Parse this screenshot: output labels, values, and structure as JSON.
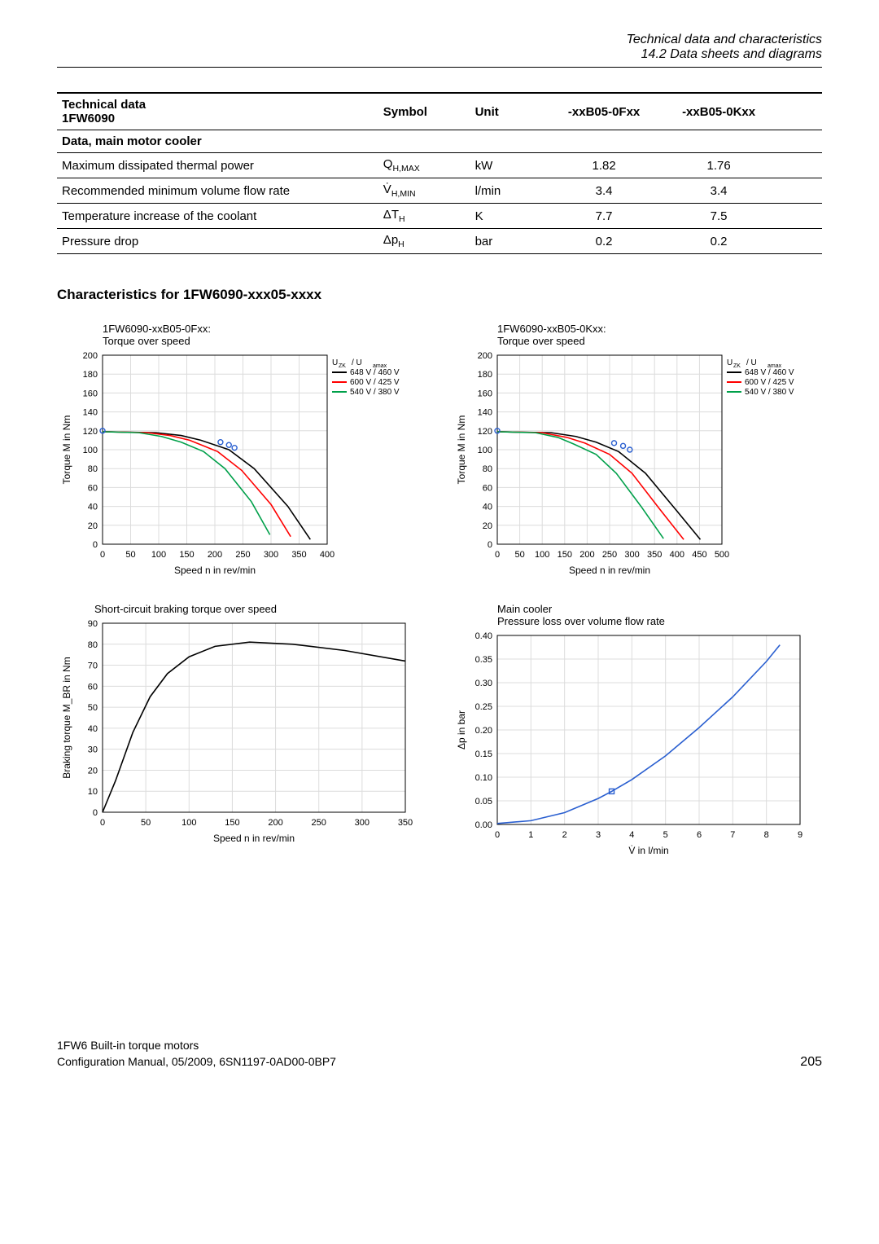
{
  "header": {
    "line1": "Technical data and characteristics",
    "line2": "14.2 Data sheets and diagrams"
  },
  "table": {
    "head": {
      "c1a": "Technical data",
      "c1b": "1FW6090",
      "c2": "Symbol",
      "c3": "Unit",
      "c4": "-xxB05-0Fxx",
      "c5": "-xxB05-0Kxx"
    },
    "subhead": "Data, main motor cooler",
    "rows": [
      {
        "label": "Maximum dissipated thermal power",
        "symbol": "Q",
        "sub": "H,MAX",
        "unit": "kW",
        "v1": "1.82",
        "v2": "1.76"
      },
      {
        "label": "Recommended minimum volume flow rate",
        "symbol": "V̇",
        "sub": "H,MIN",
        "unit": "l/min",
        "v1": "3.4",
        "v2": "3.4"
      },
      {
        "label": "Temperature increase of the coolant",
        "symbol": "ΔT",
        "sub": "H",
        "unit": "K",
        "v1": "7.7",
        "v2": "7.5"
      },
      {
        "label": "Pressure drop",
        "symbol": "Δp",
        "sub": "H",
        "unit": "bar",
        "v1": "0.2",
        "v2": "0.2"
      }
    ]
  },
  "section_title": "Characteristics for 1FW6090-xxx05-xxxx",
  "chart1": {
    "title1": "1FW6090-xxB05-0Fxx:",
    "title2": "Torque over speed",
    "xlabel": "Speed n in rev/min",
    "ylabel": "Torque M in Nm",
    "xlim": [
      0,
      400
    ],
    "ylim": [
      0,
      200
    ],
    "xticks": [
      0,
      50,
      100,
      150,
      200,
      250,
      300,
      350,
      400
    ],
    "yticks": [
      0,
      20,
      40,
      60,
      80,
      100,
      120,
      140,
      160,
      180,
      200
    ],
    "legend_title": "U_ZK / U_amax",
    "legend": [
      {
        "color": "#000000",
        "label": "648 V / 460 V"
      },
      {
        "color": "#ff0000",
        "label": "600 V / 425 V"
      },
      {
        "color": "#00a04a",
        "label": "540 V / 380 V"
      }
    ],
    "dots": {
      "color": "#2a5fd0",
      "points": [
        [
          0,
          120
        ],
        [
          210,
          108
        ],
        [
          225,
          105
        ],
        [
          235,
          102
        ]
      ]
    },
    "lines": [
      {
        "color": "#000000",
        "points": [
          [
            0,
            119
          ],
          [
            95,
            118
          ],
          [
            140,
            115
          ],
          [
            175,
            110
          ],
          [
            225,
            100
          ],
          [
            270,
            80
          ],
          [
            330,
            40
          ],
          [
            370,
            5
          ]
        ]
      },
      {
        "color": "#ff0000",
        "points": [
          [
            0,
            119
          ],
          [
            80,
            118
          ],
          [
            120,
            115
          ],
          [
            155,
            110
          ],
          [
            205,
            98
          ],
          [
            248,
            78
          ],
          [
            300,
            42
          ],
          [
            335,
            8
          ]
        ]
      },
      {
        "color": "#00a04a",
        "points": [
          [
            0,
            119
          ],
          [
            65,
            118
          ],
          [
            105,
            114
          ],
          [
            140,
            108
          ],
          [
            180,
            98
          ],
          [
            218,
            80
          ],
          [
            265,
            45
          ],
          [
            298,
            10
          ]
        ]
      }
    ],
    "grid": "#dcdcdc",
    "bg": "#ffffff",
    "axis": "#000000"
  },
  "chart2": {
    "title1": "1FW6090-xxB05-0Kxx:",
    "title2": "Torque over speed",
    "xlabel": "Speed n in rev/min",
    "ylabel": "Torque M in Nm",
    "xlim": [
      0,
      500
    ],
    "ylim": [
      0,
      200
    ],
    "xticks": [
      0,
      50,
      100,
      150,
      200,
      250,
      300,
      350,
      400,
      450,
      500
    ],
    "yticks": [
      0,
      20,
      40,
      60,
      80,
      100,
      120,
      140,
      160,
      180,
      200
    ],
    "legend_title": "U_ZK / U_amax",
    "legend": [
      {
        "color": "#000000",
        "label": "648 V / 460 V"
      },
      {
        "color": "#ff0000",
        "label": "600 V / 425 V"
      },
      {
        "color": "#00a04a",
        "label": "540 V / 380 V"
      }
    ],
    "dots": {
      "color": "#2a5fd0",
      "points": [
        [
          0,
          120
        ],
        [
          260,
          107
        ],
        [
          280,
          104
        ],
        [
          295,
          100
        ]
      ]
    },
    "lines": [
      {
        "color": "#000000",
        "points": [
          [
            0,
            119
          ],
          [
            120,
            118
          ],
          [
            175,
            114
          ],
          [
            220,
            108
          ],
          [
            270,
            98
          ],
          [
            330,
            75
          ],
          [
            400,
            35
          ],
          [
            452,
            5
          ]
        ]
      },
      {
        "color": "#ff0000",
        "points": [
          [
            0,
            119
          ],
          [
            100,
            118
          ],
          [
            155,
            113
          ],
          [
            195,
            107
          ],
          [
            250,
            95
          ],
          [
            300,
            75
          ],
          [
            360,
            38
          ],
          [
            415,
            5
          ]
        ]
      },
      {
        "color": "#00a04a",
        "points": [
          [
            0,
            119
          ],
          [
            85,
            118
          ],
          [
            135,
            113
          ],
          [
            170,
            106
          ],
          [
            220,
            95
          ],
          [
            265,
            75
          ],
          [
            320,
            40
          ],
          [
            370,
            6
          ]
        ]
      }
    ],
    "grid": "#dcdcdc",
    "bg": "#ffffff",
    "axis": "#000000"
  },
  "chart3": {
    "title": "Short-circuit braking torque over speed",
    "xlabel": "Speed n in rev/min",
    "ylabel": "Braking torque M_BR in Nm",
    "xlim": [
      0,
      350
    ],
    "ylim": [
      0,
      90
    ],
    "xticks": [
      0,
      50,
      100,
      150,
      200,
      250,
      300,
      350
    ],
    "yticks": [
      0,
      10,
      20,
      30,
      40,
      50,
      60,
      70,
      80,
      90
    ],
    "line": {
      "color": "#000000",
      "points": [
        [
          0,
          0
        ],
        [
          15,
          15
        ],
        [
          35,
          38
        ],
        [
          55,
          55
        ],
        [
          75,
          66
        ],
        [
          100,
          74
        ],
        [
          130,
          79
        ],
        [
          170,
          81
        ],
        [
          220,
          80
        ],
        [
          280,
          77
        ],
        [
          350,
          72
        ]
      ]
    },
    "grid": "#dcdcdc",
    "bg": "#ffffff",
    "axis": "#000000"
  },
  "chart4": {
    "title1": "Main cooler",
    "title2": "Pressure loss over volume flow rate",
    "xlabel": "V̇ in l/min",
    "ylabel": "Δp in bar",
    "xlim": [
      0,
      9
    ],
    "ylim": [
      0,
      0.4
    ],
    "xticks": [
      0,
      1,
      2,
      3,
      4,
      5,
      6,
      7,
      8,
      9
    ],
    "yticks": [
      0.0,
      0.05,
      0.1,
      0.15,
      0.2,
      0.25,
      0.3,
      0.35,
      0.4
    ],
    "line": {
      "color": "#2a5fd0",
      "points": [
        [
          0,
          0.002
        ],
        [
          1,
          0.008
        ],
        [
          2,
          0.025
        ],
        [
          3,
          0.055
        ],
        [
          3.4,
          0.07
        ],
        [
          4,
          0.095
        ],
        [
          5,
          0.145
        ],
        [
          6,
          0.205
        ],
        [
          7,
          0.27
        ],
        [
          8,
          0.345
        ],
        [
          8.4,
          0.38
        ]
      ]
    },
    "marker": {
      "color": "#2a5fd0",
      "point": [
        3.4,
        0.07
      ]
    },
    "grid": "#dcdcdc",
    "bg": "#ffffff",
    "axis": "#000000"
  },
  "footer": {
    "l1": "1FW6 Built-in torque motors",
    "l2": "Configuration Manual, 05/2009, 6SN1197-0AD00-0BP7",
    "page": "205"
  }
}
